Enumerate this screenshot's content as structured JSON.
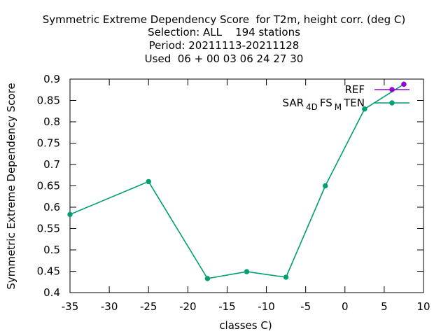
{
  "title_lines": [
    "Symmetric Extreme Dependency Score  for T2m, height corr. (deg C)",
    "Selection: ALL    194 stations",
    "Period: 20211113-20211128",
    "Used  06 + 00 03 06 24 27 30"
  ],
  "chart_data": {
    "type": "line",
    "xlabel": "classes C)",
    "ylabel": "Symmetric Extreme Dependency Score",
    "xlim": [
      -35,
      10
    ],
    "ylim": [
      0.4,
      0.9
    ],
    "x_ticks": [
      -35,
      -30,
      -25,
      -20,
      -15,
      -10,
      -5,
      0,
      5,
      10
    ],
    "x_tick_labels": [
      "-35",
      "-30",
      "-25",
      "-20",
      "-15",
      "-10",
      "-5",
      "0",
      "5",
      "10"
    ],
    "y_ticks": [
      0.4,
      0.45,
      0.5,
      0.55,
      0.6,
      0.65,
      0.7,
      0.75,
      0.8,
      0.85,
      0.9
    ],
    "y_tick_labels": [
      "0.4",
      "0.45",
      "0.5",
      "0.55",
      "0.6",
      "0.65",
      "0.7",
      "0.75",
      "0.8",
      "0.85",
      "0.9"
    ],
    "grid": false,
    "legend_position": "top-right",
    "series": [
      {
        "name": "REF",
        "color": "#9400d3",
        "points": [
          [
            7.5,
            0.888
          ]
        ]
      },
      {
        "name": "SAR4DFSMTEN",
        "legend_parts": [
          {
            "text": "SAR",
            "sub": false
          },
          {
            "text": "4D",
            "sub": true
          },
          {
            "text": "FS",
            "sub": false
          },
          {
            "text": "M",
            "sub": true
          },
          {
            "text": "TEN",
            "sub": false
          }
        ],
        "color": "#009e73",
        "points": [
          [
            -35,
            0.583
          ],
          [
            -25,
            0.66
          ],
          [
            -17.5,
            0.433
          ],
          [
            -12.5,
            0.449
          ],
          [
            -7.5,
            0.436
          ],
          [
            -2.5,
            0.65
          ],
          [
            2.5,
            0.83
          ],
          [
            7.5,
            0.888
          ]
        ]
      }
    ]
  }
}
